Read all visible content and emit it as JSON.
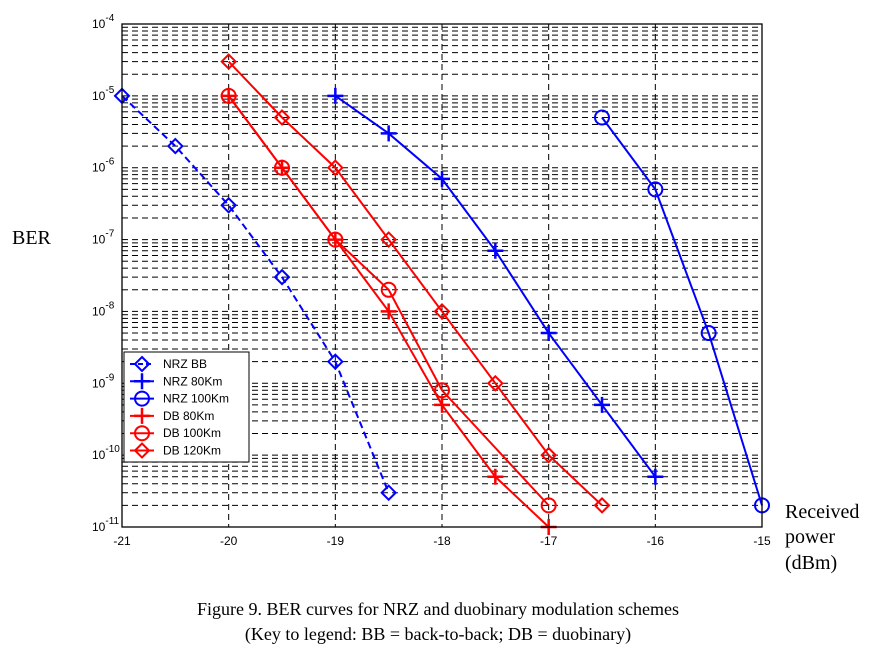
{
  "chart_data": {
    "type": "line",
    "title": "",
    "xlabel": [
      "Received",
      "power",
      "(dBm)"
    ],
    "ylabel": "BER",
    "xlim": [
      -21,
      -15
    ],
    "ylim": [
      1e-11,
      0.0001
    ],
    "yscale": "log",
    "grid": true,
    "xticks": [
      "-21",
      "-20",
      "-19",
      "-18",
      "-17",
      "-16",
      "-15"
    ],
    "yticks": [
      {
        "base": "10",
        "exp": "-4"
      },
      {
        "base": "10",
        "exp": "-5"
      },
      {
        "base": "10",
        "exp": "-6"
      },
      {
        "base": "10",
        "exp": "-7"
      },
      {
        "base": "10",
        "exp": "-8"
      },
      {
        "base": "10",
        "exp": "-9"
      },
      {
        "base": "10",
        "exp": "-10"
      },
      {
        "base": "10",
        "exp": "-11"
      }
    ],
    "legend_position": "lower-left",
    "series": [
      {
        "name": "NRZ BB",
        "color": "#0000ff",
        "marker": "diamond",
        "dashed": true,
        "x": [
          -21,
          -20.5,
          -20,
          -19.5,
          -19,
          -18.5
        ],
        "y": [
          1e-05,
          2e-06,
          3e-07,
          3e-08,
          2e-09,
          3e-11
        ]
      },
      {
        "name": "NRZ 80Km",
        "color": "#0000ff",
        "marker": "plus",
        "dashed": false,
        "x": [
          -19,
          -18.5,
          -18,
          -17.5,
          -17,
          -16.5,
          -16
        ],
        "y": [
          1e-05,
          3e-06,
          7e-07,
          7e-08,
          5e-09,
          5e-10,
          5e-11
        ]
      },
      {
        "name": "NRZ 100Km",
        "color": "#0000ff",
        "marker": "circle",
        "dashed": false,
        "x": [
          -16.5,
          -16,
          -15.5,
          -15
        ],
        "y": [
          5e-06,
          5e-07,
          5e-09,
          2e-11
        ]
      },
      {
        "name": "DB 80Km",
        "color": "#ff0000",
        "marker": "plus",
        "dashed": false,
        "x": [
          -20,
          -19.5,
          -19,
          -18.5,
          -18,
          -17.5,
          -17
        ],
        "y": [
          1e-05,
          1e-06,
          1e-07,
          1e-08,
          5e-10,
          5e-11,
          1e-11
        ]
      },
      {
        "name": "DB 100Km",
        "color": "#ff0000",
        "marker": "circle",
        "dashed": false,
        "x": [
          -20,
          -19.5,
          -19,
          -18.5,
          -18,
          -17
        ],
        "y": [
          1e-05,
          1e-06,
          1e-07,
          2e-08,
          8e-10,
          2e-11
        ]
      },
      {
        "name": "DB 120Km",
        "color": "#ff0000",
        "marker": "diamond",
        "dashed": false,
        "x": [
          -20,
          -19.5,
          -19,
          -18.5,
          -18,
          -17.5,
          -17,
          -16.5
        ],
        "y": [
          3e-05,
          5e-06,
          1e-06,
          1e-07,
          1e-08,
          1e-09,
          1e-10,
          2e-11
        ]
      }
    ]
  },
  "caption": {
    "line1": "Figure 9.  BER curves for NRZ and duobinary modulation schemes",
    "line2": "(Key to legend: BB = back-to-back; DB = duobinary)"
  }
}
